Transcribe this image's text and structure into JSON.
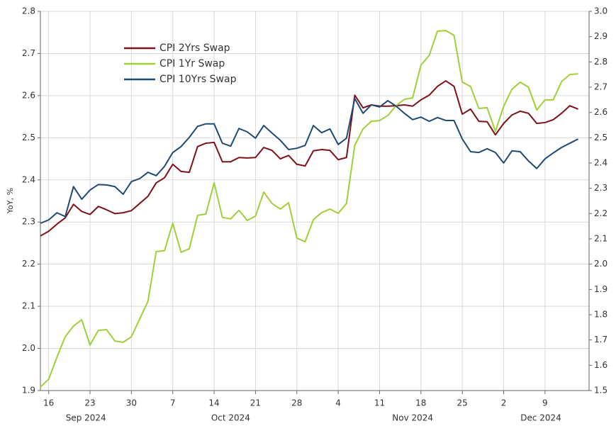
{
  "chart_data": {
    "type": "line",
    "ylabel": "YoY, %",
    "legend": "upper left",
    "grid": true,
    "x": [
      "2024-09-13",
      "2024-09-16",
      "2024-09-17",
      "2024-09-18",
      "2024-09-19",
      "2024-09-20",
      "2024-09-23",
      "2024-09-24",
      "2024-09-25",
      "2024-09-26",
      "2024-09-27",
      "2024-09-30",
      "2024-10-01",
      "2024-10-02",
      "2024-10-03",
      "2024-10-04",
      "2024-10-07",
      "2024-10-08",
      "2024-10-09",
      "2024-10-10",
      "2024-10-11",
      "2024-10-14",
      "2024-10-15",
      "2024-10-16",
      "2024-10-17",
      "2024-10-18",
      "2024-10-21",
      "2024-10-22",
      "2024-10-23",
      "2024-10-24",
      "2024-10-25",
      "2024-10-28",
      "2024-10-29",
      "2024-10-30",
      "2024-10-31",
      "2024-11-01",
      "2024-11-04",
      "2024-11-05",
      "2024-11-06",
      "2024-11-07",
      "2024-11-08",
      "2024-11-11",
      "2024-11-12",
      "2024-11-13",
      "2024-11-14",
      "2024-11-15",
      "2024-11-18",
      "2024-11-19",
      "2024-11-20",
      "2024-11-21",
      "2024-11-22",
      "2024-11-25",
      "2024-11-26",
      "2024-11-27",
      "2024-11-28",
      "2024-11-29",
      "2024-12-02",
      "2024-12-03",
      "2024-12-04",
      "2024-12-05",
      "2024-12-06",
      "2024-12-09",
      "2024-12-10",
      "2024-12-11",
      "2024-12-12",
      "2024-12-13"
    ],
    "xticks": [
      {
        "value": "2024-09-16",
        "label": "16"
      },
      {
        "value": "2024-09-23",
        "label": "23"
      },
      {
        "value": "2024-09-30",
        "label": "30"
      },
      {
        "value": "2024-10-07",
        "label": "7"
      },
      {
        "value": "2024-10-14",
        "label": "14"
      },
      {
        "value": "2024-10-21",
        "label": "21"
      },
      {
        "value": "2024-10-28",
        "label": "28"
      },
      {
        "value": "2024-11-04",
        "label": "4"
      },
      {
        "value": "2024-11-11",
        "label": "11"
      },
      {
        "value": "2024-11-18",
        "label": "18"
      },
      {
        "value": "2024-11-25",
        "label": "25"
      },
      {
        "value": "2024-12-02",
        "label": "2"
      },
      {
        "value": "2024-12-09",
        "label": "9"
      }
    ],
    "month_labels": [
      {
        "value": "2024-09",
        "label": "Sep 2024"
      },
      {
        "value": "2024-10",
        "label": "Oct 2024"
      },
      {
        "value": "2024-11",
        "label": "Nov 2024"
      },
      {
        "value": "2024-12",
        "label": "Dec 2024"
      }
    ],
    "ylim": [
      1.9,
      2.8
    ],
    "yticks": [
      1.9,
      {
        "value": 2,
        "label": "2.0"
      },
      2.1,
      2.2,
      2.3,
      2.4,
      2.5,
      2.6,
      2.7,
      2.8
    ],
    "y2lim": [
      1.5,
      3.0
    ],
    "y2ticks": [
      1.5,
      1.6,
      1.7,
      1.8,
      1.9,
      {
        "value": 2,
        "label": "2.0"
      },
      2.1,
      2.2,
      2.3,
      2.4,
      2.5,
      2.6,
      2.7,
      2.8,
      2.9,
      {
        "value": 3,
        "label": "3.0"
      }
    ],
    "series": [
      {
        "name": "CPI 2Yrs Swap",
        "color": "#7f1118",
        "axis": "y",
        "values": [
          2.267,
          2.278,
          2.295,
          2.31,
          2.342,
          2.325,
          2.318,
          2.337,
          2.329,
          2.32,
          2.322,
          2.327,
          2.344,
          2.361,
          2.393,
          2.405,
          2.437,
          2.42,
          2.418,
          2.479,
          2.487,
          2.489,
          2.443,
          2.443,
          2.453,
          2.452,
          2.453,
          2.477,
          2.47,
          2.45,
          2.458,
          2.437,
          2.433,
          2.469,
          2.472,
          2.47,
          2.448,
          2.453,
          2.601,
          2.571,
          2.578,
          2.575,
          2.575,
          2.576,
          2.578,
          2.575,
          2.59,
          2.601,
          2.622,
          2.635,
          2.622,
          2.556,
          2.568,
          2.539,
          2.538,
          2.507,
          2.534,
          2.554,
          2.563,
          2.558,
          2.534,
          2.536,
          2.543,
          2.558,
          2.576,
          2.568
        ]
      },
      {
        "name": "CPI 1Yr Swap",
        "color": "#a2cf38",
        "axis": "y2",
        "values": [
          1.514,
          1.545,
          1.632,
          1.713,
          1.755,
          1.78,
          1.68,
          1.738,
          1.741,
          1.696,
          1.691,
          1.713,
          1.783,
          1.853,
          2.05,
          2.053,
          2.162,
          2.047,
          2.061,
          2.193,
          2.198,
          2.322,
          2.185,
          2.179,
          2.213,
          2.173,
          2.19,
          2.285,
          2.24,
          2.218,
          2.243,
          2.103,
          2.089,
          2.176,
          2.204,
          2.218,
          2.201,
          2.24,
          2.47,
          2.535,
          2.565,
          2.568,
          2.588,
          2.627,
          2.652,
          2.658,
          2.787,
          2.826,
          2.922,
          2.924,
          2.905,
          2.72,
          2.703,
          2.616,
          2.619,
          2.526,
          2.624,
          2.692,
          2.72,
          2.7,
          2.61,
          2.65,
          2.65,
          2.722,
          2.75,
          2.753
        ]
      },
      {
        "name": "CPI 10Yrs Swap",
        "color": "#1f4a73",
        "axis": "y",
        "values": [
          2.297,
          2.305,
          2.322,
          2.313,
          2.384,
          2.354,
          2.376,
          2.389,
          2.388,
          2.384,
          2.366,
          2.396,
          2.403,
          2.418,
          2.41,
          2.432,
          2.465,
          2.479,
          2.501,
          2.527,
          2.533,
          2.533,
          2.487,
          2.48,
          2.522,
          2.514,
          2.499,
          2.529,
          2.511,
          2.494,
          2.472,
          2.475,
          2.482,
          2.529,
          2.512,
          2.521,
          2.484,
          2.499,
          2.593,
          2.558,
          2.578,
          2.573,
          2.588,
          2.575,
          2.558,
          2.543,
          2.549,
          2.539,
          2.548,
          2.541,
          2.541,
          2.497,
          2.467,
          2.465,
          2.474,
          2.465,
          2.44,
          2.469,
          2.467,
          2.445,
          2.427,
          2.45,
          2.464,
          2.477,
          2.487,
          2.497
        ]
      }
    ]
  }
}
